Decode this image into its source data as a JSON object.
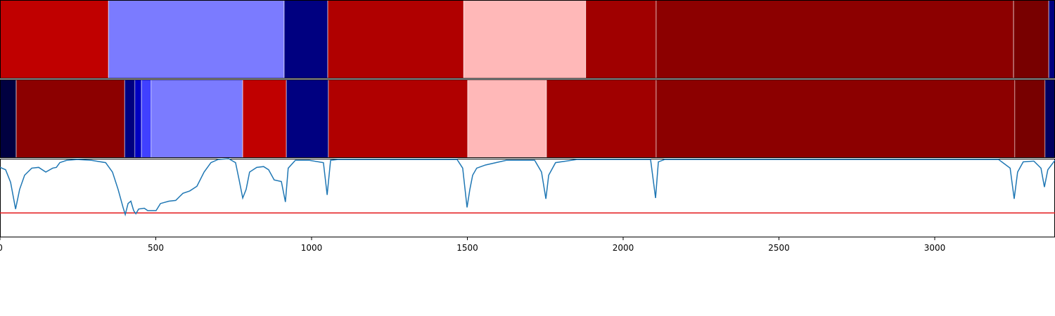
{
  "chart_data": {
    "type": "segments-line",
    "xlim": [
      0,
      3386
    ],
    "xticks": [
      0,
      500,
      1000,
      1500,
      2000,
      2500,
      3000
    ],
    "ylim": [
      0,
      1
    ],
    "tracks": [
      {
        "segments": [
          {
            "start": 0,
            "end": 348,
            "color": "#c00000"
          },
          {
            "start": 348,
            "end": 912,
            "color": "#7b7bff"
          },
          {
            "start": 912,
            "end": 1052,
            "color": "#000080"
          },
          {
            "start": 1052,
            "end": 1488,
            "color": "#b00000"
          },
          {
            "start": 1488,
            "end": 1880,
            "color": "#ffb8b8"
          },
          {
            "start": 1880,
            "end": 2106,
            "color": "#a00000"
          },
          {
            "start": 2106,
            "end": 3253,
            "color": "#8c0000"
          },
          {
            "start": 3253,
            "end": 3366,
            "color": "#780000"
          },
          {
            "start": 3366,
            "end": 3386,
            "color": "#000080"
          }
        ]
      },
      {
        "segments": [
          {
            "start": 0,
            "end": 52,
            "color": "#000040"
          },
          {
            "start": 52,
            "end": 400,
            "color": "#8c0000"
          },
          {
            "start": 400,
            "end": 433,
            "color": "#000080"
          },
          {
            "start": 433,
            "end": 454,
            "color": "#0000c0"
          },
          {
            "start": 454,
            "end": 485,
            "color": "#4040ff"
          },
          {
            "start": 485,
            "end": 779,
            "color": "#7b7bff"
          },
          {
            "start": 779,
            "end": 919,
            "color": "#c00000"
          },
          {
            "start": 919,
            "end": 1054,
            "color": "#000080"
          },
          {
            "start": 1054,
            "end": 1501,
            "color": "#b00000"
          },
          {
            "start": 1501,
            "end": 1754,
            "color": "#ffb8b8"
          },
          {
            "start": 1754,
            "end": 2106,
            "color": "#a00000"
          },
          {
            "start": 2106,
            "end": 3257,
            "color": "#8c0000"
          },
          {
            "start": 3257,
            "end": 3354,
            "color": "#780000"
          },
          {
            "start": 3354,
            "end": 3386,
            "color": "#000060"
          }
        ]
      }
    ],
    "line": {
      "color": "#1f77b4",
      "x": [
        0,
        18,
        34,
        50,
        63,
        79,
        102,
        124,
        147,
        169,
        181,
        192,
        214,
        248,
        293,
        339,
        361,
        379,
        395,
        402,
        411,
        420,
        429,
        436,
        445,
        463,
        474,
        501,
        515,
        542,
        564,
        587,
        609,
        632,
        655,
        677,
        700,
        734,
        756,
        767,
        779,
        790,
        801,
        824,
        846,
        862,
        880,
        903,
        916,
        925,
        948,
        993,
        1038,
        1050,
        1061,
        1084,
        1467,
        1485,
        1499,
        1508,
        1517,
        1530,
        1558,
        1625,
        1716,
        1738,
        1752,
        1761,
        1783,
        1851,
        2088,
        2104,
        2113,
        2133,
        3205,
        3242,
        3255,
        3266,
        3284,
        3318,
        3341,
        3352,
        3363,
        3386
      ],
      "values": [
        0.89,
        0.86,
        0.7,
        0.36,
        0.61,
        0.79,
        0.88,
        0.89,
        0.83,
        0.88,
        0.89,
        0.95,
        0.98,
        0.99,
        0.98,
        0.95,
        0.83,
        0.61,
        0.38,
        0.29,
        0.43,
        0.46,
        0.34,
        0.3,
        0.36,
        0.37,
        0.34,
        0.34,
        0.43,
        0.46,
        0.47,
        0.56,
        0.59,
        0.65,
        0.83,
        0.95,
        0.99,
        1.0,
        0.95,
        0.74,
        0.5,
        0.61,
        0.83,
        0.89,
        0.9,
        0.86,
        0.73,
        0.71,
        0.45,
        0.88,
        0.98,
        0.98,
        0.95,
        0.54,
        0.98,
        0.99,
        0.99,
        0.88,
        0.38,
        0.61,
        0.79,
        0.88,
        0.92,
        0.98,
        0.98,
        0.83,
        0.49,
        0.79,
        0.95,
        0.99,
        0.99,
        0.5,
        0.96,
        0.99,
        0.99,
        0.88,
        0.49,
        0.83,
        0.96,
        0.97,
        0.88,
        0.64,
        0.86,
        0.98
      ]
    },
    "threshold": {
      "value": 0.31,
      "color": "#e31a1c"
    }
  }
}
